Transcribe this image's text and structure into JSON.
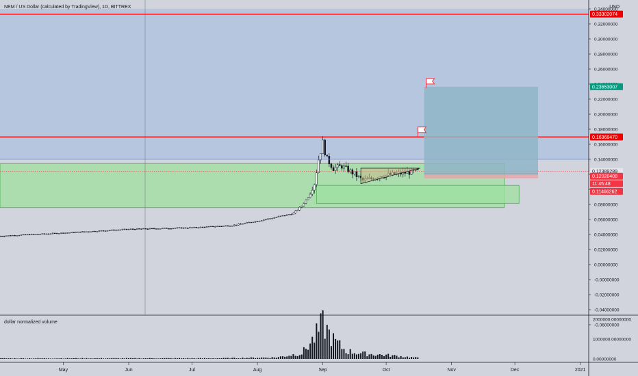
{
  "header": {
    "title": "NEM / US Dollar (calculated by TradingView), 1D, BITTREX",
    "currency": "USD"
  },
  "price_axis": {
    "ticks": [
      "0.34000000",
      "0.32000000",
      "0.30000000",
      "0.28000000",
      "0.26000000",
      "0.24000000",
      "0.22000000",
      "0.20000000",
      "0.18000000",
      "0.16000000",
      "0.14000000",
      "0.12000000",
      "0.10000000",
      "0.08000000",
      "0.06000000",
      "0.04000000",
      "0.02000000",
      "0.00000000",
      "-0.00000000",
      "-0.02000000",
      "-0.04000000",
      "-0.06000000"
    ]
  },
  "volume_pane": {
    "label": "dollar normalized volume",
    "ticks": [
      "2000000.00000000",
      "1000000.00000000",
      "0.00000000"
    ]
  },
  "time_axis": {
    "labels": [
      "May",
      "Jun",
      "Jul",
      "Aug",
      "Sep",
      "Oct",
      "Nov",
      "Dec",
      "2021"
    ]
  },
  "price_labels": {
    "resistance_top": "0.33302074",
    "target": "0.23653007",
    "resistance_mid": "0.16968470",
    "last_price": "0.12389289",
    "entry": "0.12028408",
    "countdown": "11:45:48",
    "stop": "0.11466262"
  },
  "colors": {
    "background": "#d1d4dc",
    "blue_zone": "#b7c6df",
    "green_zone": "#9ee0a0",
    "red_line": "#f00000",
    "target_box": "#8fb5c8",
    "stop_box": "#e3a7ac",
    "target_label": "#089981",
    "red_label": "#f23645",
    "candle": "#131722"
  },
  "chart_data": {
    "type": "candlestick",
    "title": "NEM / US Dollar (calculated by TradingView), 1D, BITTREX",
    "y_axis": {
      "unit": "USD",
      "range": [
        -0.06,
        0.34
      ]
    },
    "x_axis": {
      "range": [
        "2020-04-01",
        "2021-01-05"
      ],
      "labels": [
        "May",
        "Jun",
        "Jul",
        "Aug",
        "Sep",
        "Oct",
        "Nov",
        "Dec",
        "2021"
      ]
    },
    "anchors": [
      {
        "date": "2020-04-01",
        "close": 0.038
      },
      {
        "date": "2020-05-01",
        "close": 0.042
      },
      {
        "date": "2020-06-01",
        "close": 0.047
      },
      {
        "date": "2020-07-01",
        "close": 0.049
      },
      {
        "date": "2020-07-20",
        "close": 0.052
      },
      {
        "date": "2020-08-01",
        "close": 0.058
      },
      {
        "date": "2020-08-10",
        "close": 0.063
      },
      {
        "date": "2020-08-18",
        "close": 0.068
      },
      {
        "date": "2020-08-22",
        "close": 0.078
      },
      {
        "date": "2020-08-25",
        "close": 0.09
      },
      {
        "date": "2020-08-28",
        "close": 0.108
      },
      {
        "date": "2020-08-30",
        "close": 0.14
      },
      {
        "date": "2020-09-01",
        "close": 0.162
      },
      {
        "date": "2020-09-02",
        "close": 0.15
      },
      {
        "date": "2020-09-03",
        "close": 0.14
      },
      {
        "date": "2020-09-06",
        "close": 0.128
      },
      {
        "date": "2020-09-10",
        "close": 0.131
      },
      {
        "date": "2020-09-15",
        "close": 0.122
      },
      {
        "date": "2020-09-20",
        "close": 0.112
      },
      {
        "date": "2020-09-24",
        "close": 0.114
      },
      {
        "date": "2020-09-28",
        "close": 0.118
      },
      {
        "date": "2020-10-05",
        "close": 0.12
      },
      {
        "date": "2020-10-10",
        "close": 0.122
      },
      {
        "date": "2020-10-16",
        "close": 0.1239
      }
    ],
    "horizontal_lines": [
      {
        "price": 0.33302074,
        "color": "#f00000"
      },
      {
        "price": 0.1696847,
        "color": "#f00000"
      },
      {
        "price": 0.14,
        "color": "#6e8fd6"
      },
      {
        "price": 0.12389289,
        "color": "#f23645",
        "dashed": true
      }
    ],
    "zones": [
      {
        "kind": "blue",
        "from_price": 0.14,
        "to_price": 0.34
      },
      {
        "kind": "green",
        "from_price": 0.0757,
        "to_price": 0.1343,
        "until": "2020-11-26"
      },
      {
        "kind": "green",
        "from_price": 0.0815,
        "to_price": 0.1053,
        "from": "2020-08-29",
        "until": "2020-12-03"
      }
    ],
    "triangle": [
      {
        "date": "2020-09-19",
        "price": 0.1282
      },
      {
        "date": "2020-10-17",
        "price": 0.1282
      },
      {
        "date": "2020-09-19",
        "price": 0.1076
      }
    ],
    "long_position": {
      "entry": 0.12028408,
      "target": 0.23653007,
      "stop": 0.11466262,
      "from": "2020-10-19",
      "to": "2020-12-12"
    },
    "flags": [
      {
        "date": "2020-10-20",
        "price": 0.2365
      },
      {
        "date": "2020-10-16",
        "price": 0.172
      }
    ],
    "volume": {
      "ylim": [
        0,
        2000000
      ],
      "anchors": [
        {
          "date": "2020-04-01",
          "value": 30000
        },
        {
          "date": "2020-07-15",
          "value": 35000
        },
        {
          "date": "2020-08-10",
          "value": 80000
        },
        {
          "date": "2020-08-22",
          "value": 300000
        },
        {
          "date": "2020-08-28",
          "value": 1100000
        },
        {
          "date": "2020-09-01",
          "value": 1850000
        },
        {
          "date": "2020-09-06",
          "value": 1000000
        },
        {
          "date": "2020-09-12",
          "value": 420000
        },
        {
          "date": "2020-09-20",
          "value": 280000
        },
        {
          "date": "2020-10-01",
          "value": 200000
        },
        {
          "date": "2020-10-16",
          "value": 60000
        }
      ]
    }
  }
}
